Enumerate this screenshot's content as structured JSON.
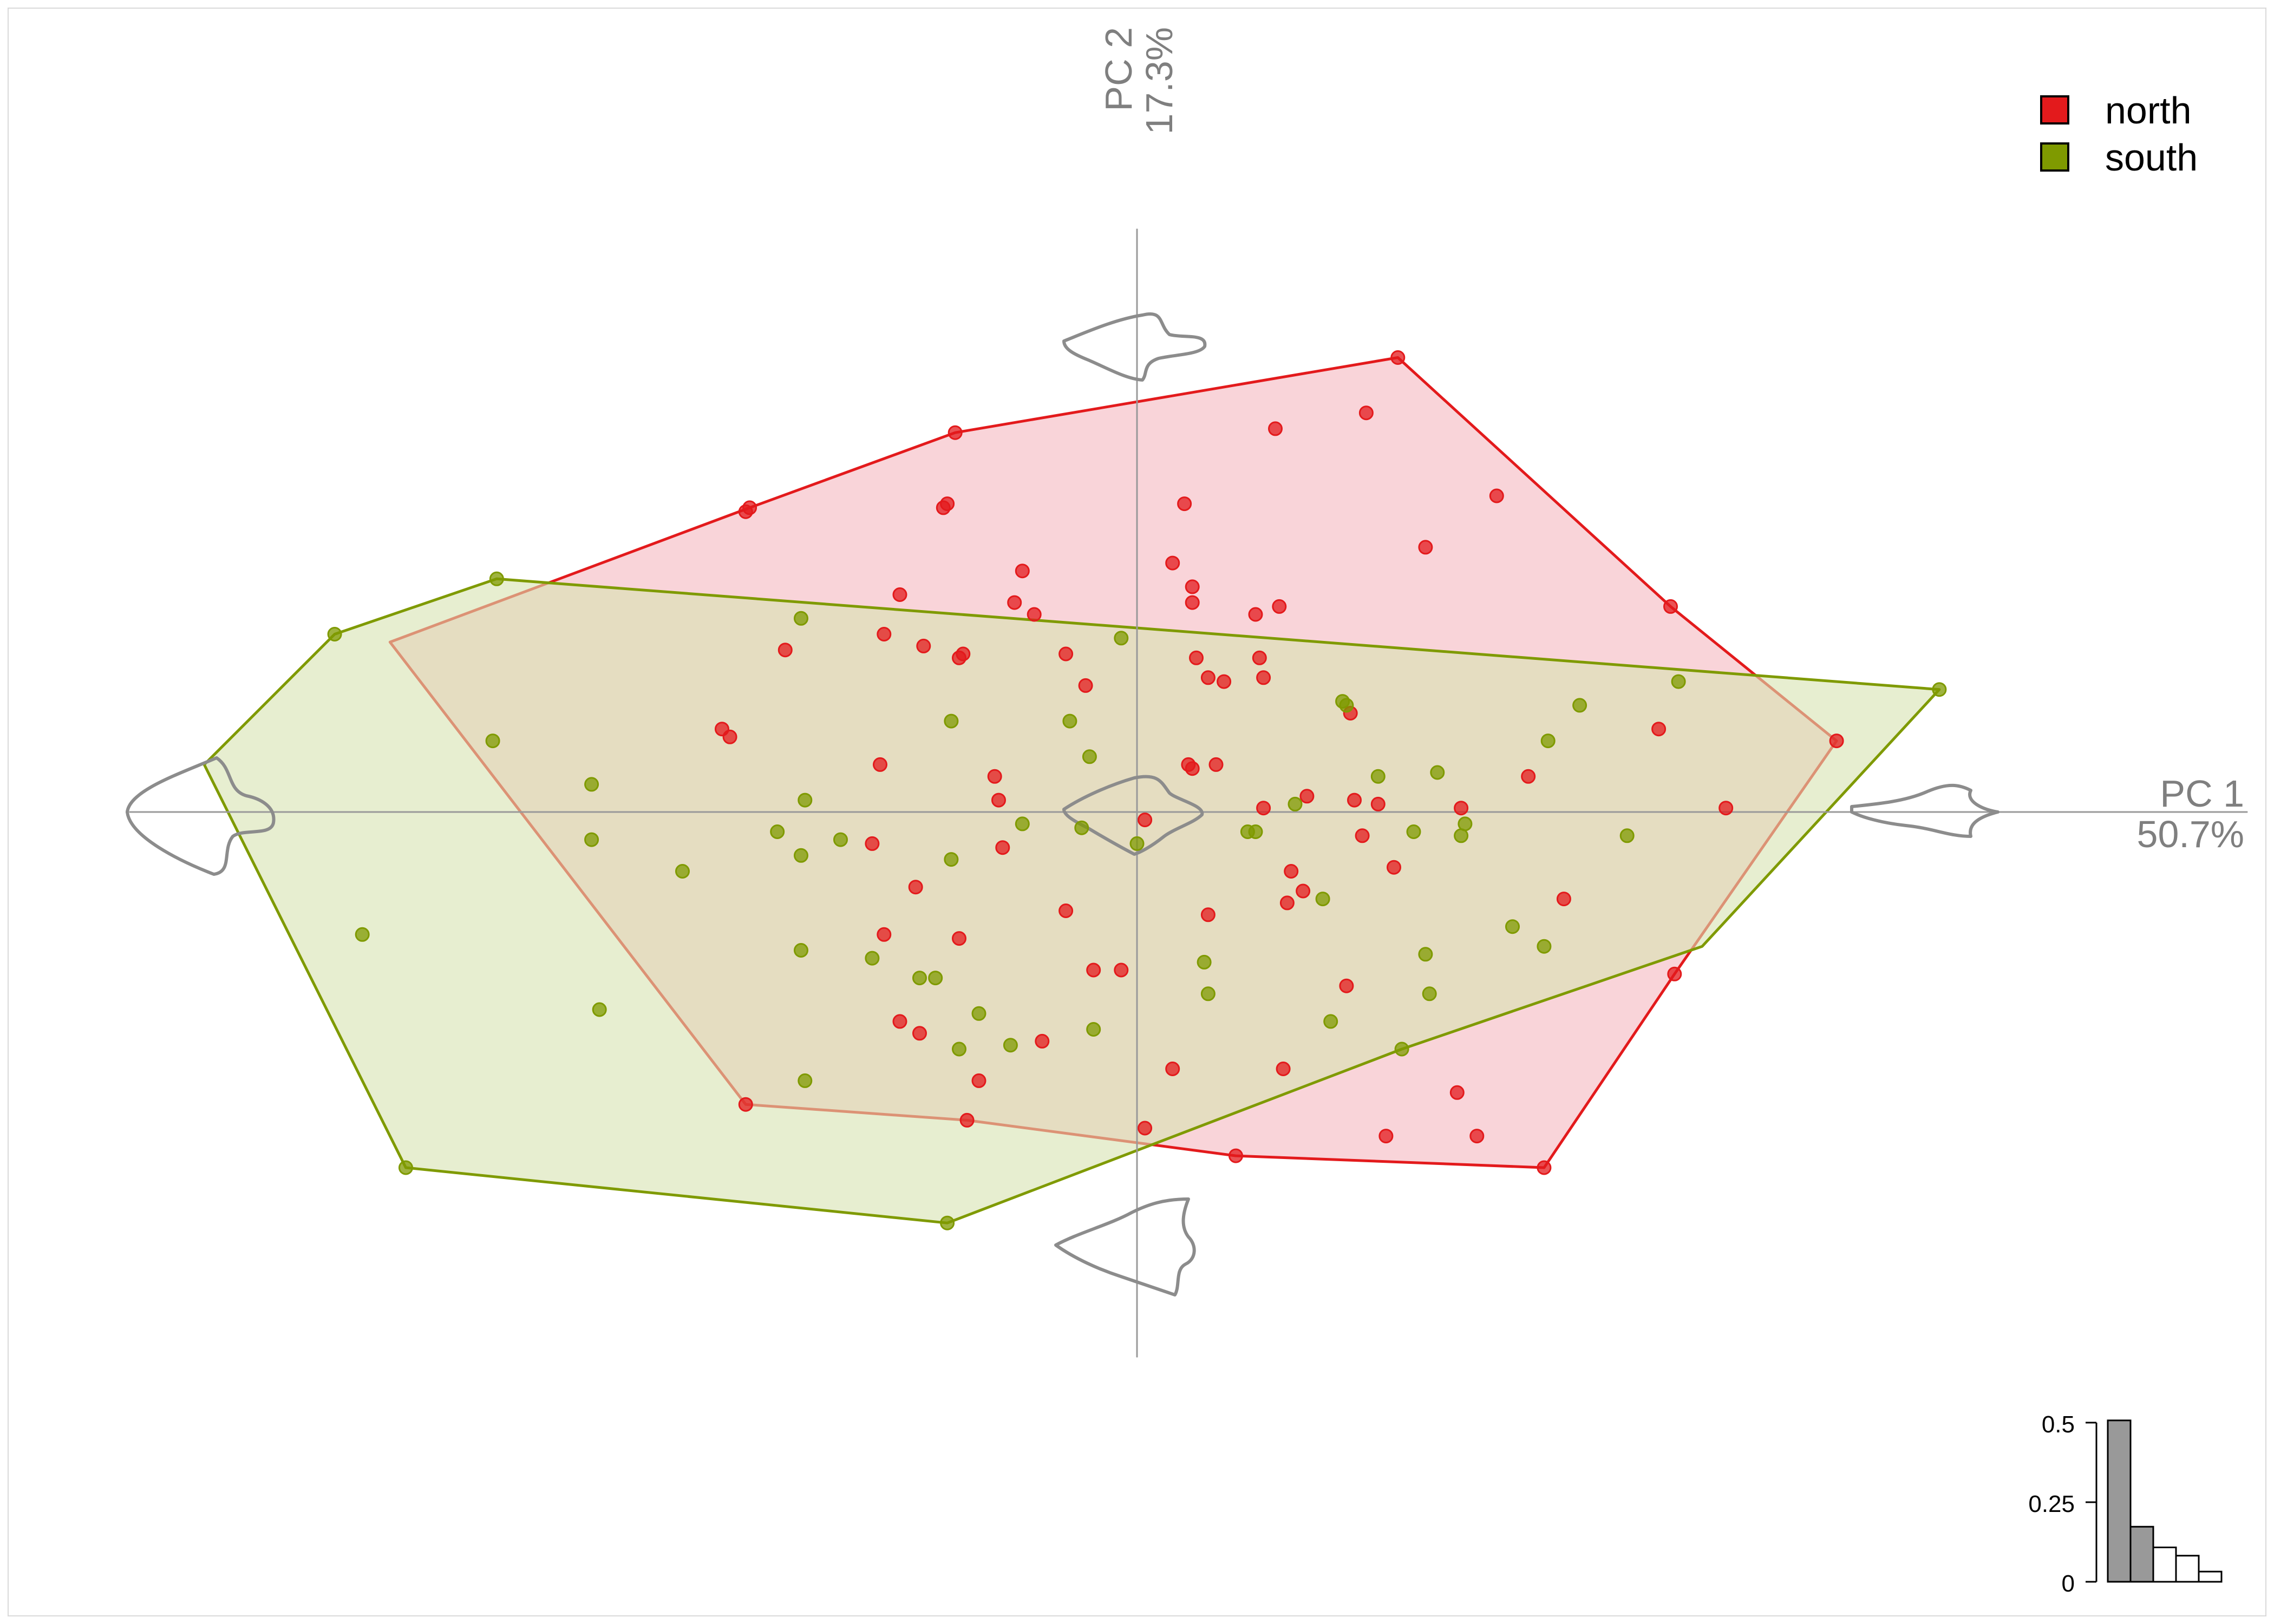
{
  "chart_data": {
    "type": "scatter",
    "title": "",
    "xlabel": "PC 1",
    "xlabel_variance": "50.7%",
    "ylabel": "PC 2",
    "ylabel_variance": "17.3%",
    "xlim": [
      -0.255,
      0.281
    ],
    "ylim": [
      -0.175,
      0.175
    ],
    "legend_position": "top-right",
    "show_convex_hulls": true,
    "series": [
      {
        "name": "north",
        "color": "#e31a1c",
        "fill": "#f5b8bf",
        "hull": [
          [
            0.066,
            0.115
          ],
          [
            0.135,
            0.052
          ],
          [
            0.177,
            0.018
          ],
          [
            0.136,
            -0.041
          ],
          [
            0.103,
            -0.09
          ],
          [
            0.025,
            -0.087
          ],
          [
            -0.043,
            -0.078
          ],
          [
            -0.099,
            -0.074
          ],
          [
            -0.189,
            0.043
          ],
          [
            -0.098,
            0.077
          ],
          [
            -0.046,
            0.096
          ]
        ],
        "points": [
          [
            0.066,
            0.115
          ],
          [
            0.035,
            0.097
          ],
          [
            0.058,
            0.101
          ],
          [
            -0.046,
            0.096
          ],
          [
            -0.048,
            0.078
          ],
          [
            -0.049,
            0.077
          ],
          [
            -0.098,
            0.077
          ],
          [
            -0.099,
            0.076
          ],
          [
            0.012,
            0.078
          ],
          [
            0.091,
            0.08
          ],
          [
            0.073,
            0.067
          ],
          [
            0.135,
            0.052
          ],
          [
            -0.029,
            0.061
          ],
          [
            0.009,
            0.063
          ],
          [
            0.014,
            0.057
          ],
          [
            -0.06,
            0.055
          ],
          [
            -0.031,
            0.053
          ],
          [
            -0.026,
            0.05
          ],
          [
            0.036,
            0.052
          ],
          [
            0.014,
            0.053
          ],
          [
            0.03,
            0.05
          ],
          [
            -0.089,
            0.041
          ],
          [
            -0.064,
            0.045
          ],
          [
            -0.054,
            0.042
          ],
          [
            -0.045,
            0.039
          ],
          [
            -0.044,
            0.04
          ],
          [
            -0.018,
            0.04
          ],
          [
            0.015,
            0.039
          ],
          [
            -0.013,
            0.032
          ],
          [
            0.031,
            0.039
          ],
          [
            0.032,
            0.034
          ],
          [
            0.018,
            0.034
          ],
          [
            0.022,
            0.033
          ],
          [
            0.054,
            0.025
          ],
          [
            -0.105,
            0.021
          ],
          [
            -0.103,
            0.019
          ],
          [
            0.177,
            0.018
          ],
          [
            0.099,
            0.009
          ],
          [
            0.132,
            0.021
          ],
          [
            -0.065,
            0.012
          ],
          [
            0.014,
            0.011
          ],
          [
            -0.036,
            0.009
          ],
          [
            0.013,
            0.012
          ],
          [
            0.02,
            0.012
          ],
          [
            -0.035,
            0.003
          ],
          [
            0.043,
            0.004
          ],
          [
            0.061,
            0.002
          ],
          [
            0.002,
            -0.002
          ],
          [
            0.032,
            0.001
          ],
          [
            0.055,
            0.003
          ],
          [
            0.082,
            0.001
          ],
          [
            0.149,
            0.001
          ],
          [
            0.057,
            -0.006
          ],
          [
            -0.067,
            -0.008
          ],
          [
            -0.034,
            -0.009
          ],
          [
            0.065,
            -0.014
          ],
          [
            0.039,
            -0.015
          ],
          [
            0.042,
            -0.02
          ],
          [
            -0.056,
            -0.019
          ],
          [
            0.038,
            -0.023
          ],
          [
            0.108,
            -0.022
          ],
          [
            0.018,
            -0.026
          ],
          [
            -0.018,
            -0.025
          ],
          [
            -0.064,
            -0.031
          ],
          [
            -0.045,
            -0.032
          ],
          [
            -0.011,
            -0.04
          ],
          [
            -0.004,
            -0.04
          ],
          [
            0.053,
            -0.044
          ],
          [
            0.136,
            -0.041
          ],
          [
            -0.06,
            -0.053
          ],
          [
            -0.055,
            -0.056
          ],
          [
            -0.024,
            -0.058
          ],
          [
            0.037,
            -0.065
          ],
          [
            0.009,
            -0.065
          ],
          [
            -0.04,
            -0.068
          ],
          [
            0.081,
            -0.071
          ],
          [
            0.086,
            -0.082
          ],
          [
            0.103,
            -0.09
          ],
          [
            0.063,
            -0.082
          ],
          [
            0.002,
            -0.08
          ],
          [
            -0.043,
            -0.078
          ],
          [
            -0.099,
            -0.074
          ],
          [
            0.025,
            -0.087
          ]
        ]
      },
      {
        "name": "south",
        "color": "#7f9a00",
        "fill": "#d7e2b0",
        "hull": [
          [
            0.203,
            0.031
          ],
          [
            0.143,
            -0.034
          ],
          [
            0.067,
            -0.06
          ],
          [
            -0.048,
            -0.104
          ],
          [
            -0.185,
            -0.09
          ],
          [
            -0.236,
            0.012
          ],
          [
            -0.203,
            0.045
          ],
          [
            -0.162,
            0.059
          ]
        ],
        "points": [
          [
            -0.162,
            0.059
          ],
          [
            -0.085,
            0.049
          ],
          [
            -0.004,
            0.044
          ],
          [
            -0.203,
            0.045
          ],
          [
            -0.047,
            0.023
          ],
          [
            -0.017,
            0.023
          ],
          [
            0.052,
            0.028
          ],
          [
            0.053,
            0.027
          ],
          [
            0.112,
            0.027
          ],
          [
            0.137,
            0.033
          ],
          [
            0.104,
            0.018
          ],
          [
            0.203,
            0.031
          ],
          [
            -0.163,
            0.018
          ],
          [
            -0.012,
            0.014
          ],
          [
            0.061,
            0.009
          ],
          [
            0.076,
            0.01
          ],
          [
            -0.138,
            0.007
          ],
          [
            -0.084,
            0.003
          ],
          [
            0.04,
            0.002
          ],
          [
            -0.029,
            -0.003
          ],
          [
            -0.014,
            -0.004
          ],
          [
            0.03,
            -0.005
          ],
          [
            0.07,
            -0.005
          ],
          [
            0.083,
            -0.003
          ],
          [
            -0.091,
            -0.005
          ],
          [
            -0.075,
            -0.007
          ],
          [
            0.082,
            -0.006
          ],
          [
            0.124,
            -0.006
          ],
          [
            -0.138,
            -0.007
          ],
          [
            0.0,
            -0.008
          ],
          [
            0.028,
            -0.005
          ],
          [
            -0.085,
            -0.011
          ],
          [
            -0.047,
            -0.012
          ],
          [
            -0.115,
            -0.015
          ],
          [
            0.047,
            -0.022
          ],
          [
            0.095,
            -0.029
          ],
          [
            0.103,
            -0.034
          ],
          [
            -0.196,
            -0.031
          ],
          [
            -0.085,
            -0.035
          ],
          [
            -0.067,
            -0.037
          ],
          [
            0.073,
            -0.036
          ],
          [
            -0.055,
            -0.042
          ],
          [
            0.017,
            -0.038
          ],
          [
            0.074,
            -0.046
          ],
          [
            0.018,
            -0.046
          ],
          [
            -0.04,
            -0.051
          ],
          [
            -0.051,
            -0.042
          ],
          [
            -0.084,
            -0.068
          ],
          [
            -0.032,
            -0.059
          ],
          [
            -0.011,
            -0.055
          ],
          [
            0.067,
            -0.06
          ],
          [
            -0.045,
            -0.06
          ],
          [
            -0.136,
            -0.05
          ],
          [
            -0.185,
            -0.09
          ],
          [
            -0.048,
            -0.104
          ],
          [
            0.049,
            -0.053
          ]
        ]
      }
    ],
    "shape_glyphs": [
      "pc1-min",
      "pc1-max",
      "pc2-min",
      "pc2-max",
      "center"
    ],
    "scree_inset": {
      "yticks": [
        "0",
        "0.25",
        "0.5"
      ],
      "values": [
        0.507,
        0.173,
        0.108,
        0.082,
        0.032
      ],
      "shaded_count": 2,
      "shaded_color": "#999999"
    }
  }
}
